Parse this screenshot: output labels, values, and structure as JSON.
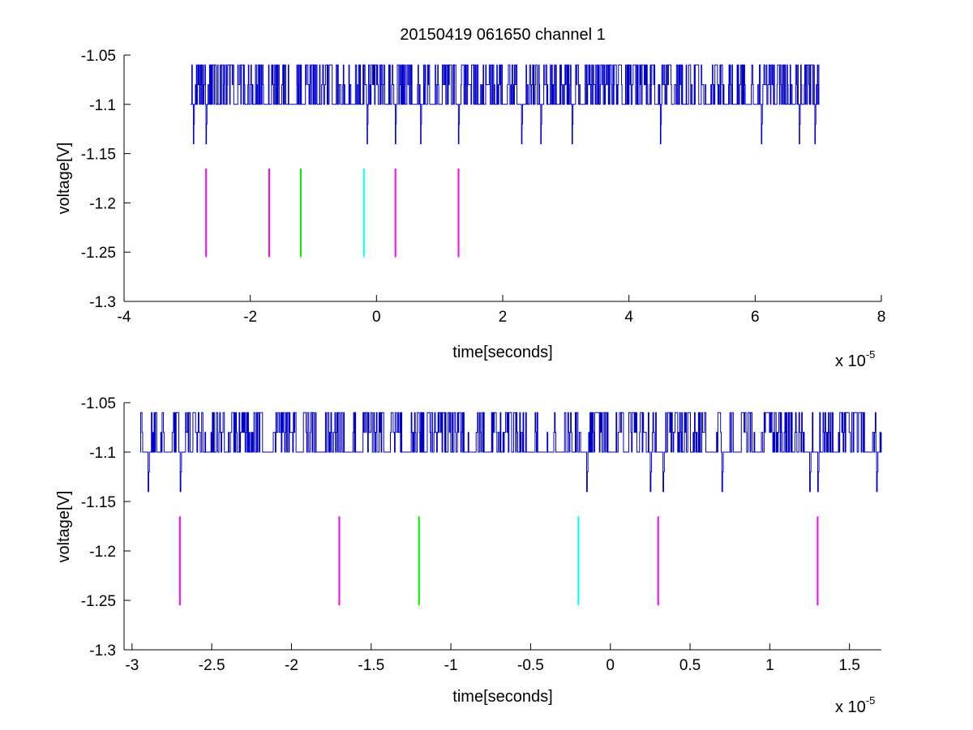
{
  "title": "20150419 061650 channel 1",
  "colors": {
    "signal": "#0000cc",
    "marker_magenta": "#ff00ff",
    "marker_green": "#00ee00",
    "marker_cyan": "#00ffff",
    "axes": "#000000",
    "background": "#ffffff"
  },
  "chart_data": [
    {
      "type": "line",
      "title": "20150419 061650 channel 1",
      "xlabel": "time[seconds]",
      "ylabel": "voltage[V]",
      "x_exponent_base": "x 10",
      "x_exponent": "-5",
      "xlim": [
        -4,
        8
      ],
      "ylim": [
        -1.3,
        -1.05
      ],
      "xticks": [
        "-4",
        "-2",
        "0",
        "2",
        "4",
        "6",
        "8"
      ],
      "yticks": [
        "-1.05",
        "-1.1",
        "-1.15",
        "-1.2",
        "-1.25",
        "-1.3"
      ],
      "grid": false,
      "series": [
        {
          "kind": "signal",
          "x_range": [
            -2.95,
            7.02
          ],
          "levels": [
            -1.06,
            -1.08,
            -1.1,
            -1.12,
            -1.14
          ],
          "dips_to": [
            -2.9,
            -2.7,
            -0.15,
            0.3,
            0.7,
            1.3,
            2.3,
            2.6,
            3.1,
            4.5,
            6.1,
            6.7,
            6.95
          ]
        },
        {
          "kind": "markers",
          "y_range": [
            -1.255,
            -1.165
          ],
          "x": [
            -2.7,
            -1.7,
            -1.2,
            -0.2,
            0.3,
            1.3
          ],
          "colors": [
            "#ff00ff",
            "#ff00ff",
            "#00ee00",
            "#00ffff",
            "#ff00ff",
            "#ff00ff"
          ]
        }
      ]
    },
    {
      "type": "line",
      "title": "",
      "xlabel": "time[seconds]",
      "ylabel": "voltage[V]",
      "x_exponent_base": "x 10",
      "x_exponent": "-5",
      "xlim": [
        -3.05,
        1.7
      ],
      "ylim": [
        -1.3,
        -1.05
      ],
      "xticks": [
        "-3",
        "-2.5",
        "-2",
        "-1.5",
        "-1",
        "-0.5",
        "0",
        "0.5",
        "1",
        "1.5"
      ],
      "yticks": [
        "-1.05",
        "-1.1",
        "-1.15",
        "-1.2",
        "-1.25",
        "-1.3"
      ],
      "grid": false,
      "series": [
        {
          "kind": "signal",
          "x_range": [
            -2.95,
            1.7
          ],
          "levels": [
            -1.06,
            -1.08,
            -1.1,
            -1.12,
            -1.14
          ],
          "dips_to": [
            -2.9,
            -2.7,
            -0.15,
            0.25,
            0.33,
            0.7,
            1.25,
            1.3,
            1.67
          ]
        },
        {
          "kind": "markers",
          "y_range": [
            -1.255,
            -1.165
          ],
          "x": [
            -2.7,
            -1.7,
            -1.2,
            -0.2,
            0.3,
            1.3
          ],
          "colors": [
            "#ff00ff",
            "#ff00ff",
            "#00ee00",
            "#00ffff",
            "#ff00ff",
            "#ff00ff"
          ]
        }
      ]
    }
  ]
}
